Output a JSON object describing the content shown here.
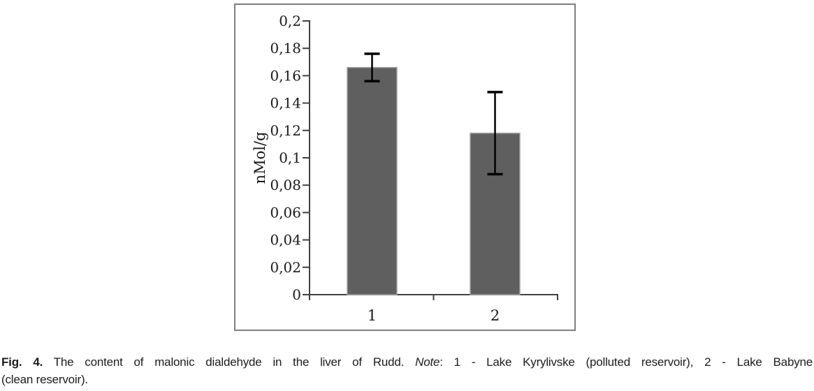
{
  "caption": {
    "label": "Fig. 4.",
    "text": " The content of malonic dialdehyde in the liver of Rudd. ",
    "note_word": "Note",
    "note_rest": ": 1 - Lake Kyrylivske (polluted reservoir), 2 - Lake Babyne",
    "line2": "(clean reservoir)."
  },
  "chart_data": {
    "type": "bar",
    "categories": [
      "1",
      "2"
    ],
    "values": [
      0.166,
      0.118
    ],
    "error_bars": [
      0.01,
      0.03
    ],
    "title": "",
    "xlabel": "",
    "ylabel": "nMol/g",
    "ylim": [
      0,
      0.2
    ],
    "ytick_step": 0.02,
    "ytick_labels": [
      "0",
      "0,02",
      "0,04",
      "0,06",
      "0,08",
      "0,1",
      "0,12",
      "0,14",
      "0,16",
      "0,18",
      "0,2"
    ],
    "decimal_separator": ",",
    "grid": false,
    "legend": "none",
    "bar_color": "#5f5f5f",
    "bar_border_color": "#a3a3a3",
    "error_bar_color": "#000000",
    "axis_color": "#404040",
    "tick_label_color": "#1a1a1a",
    "frame_color": "#7f7f7f"
  }
}
